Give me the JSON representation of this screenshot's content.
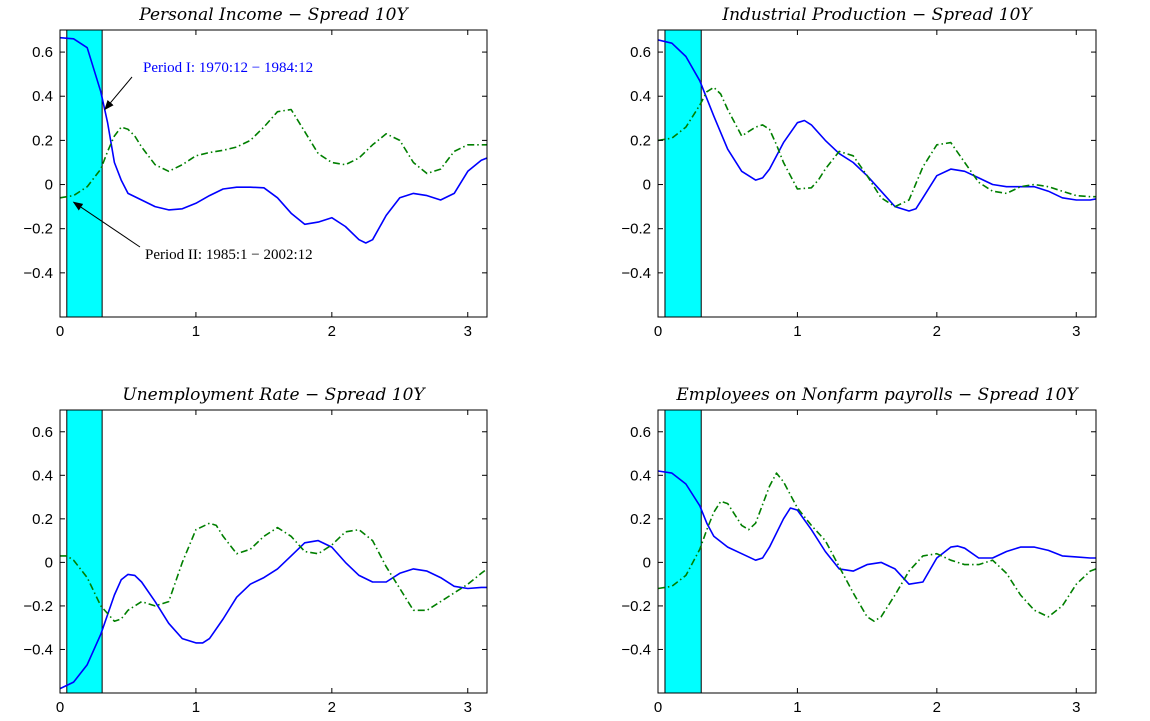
{
  "colors": {
    "period_i": "#0000ff",
    "period_ii": "#007f00",
    "band": "#00ffff",
    "axes": "#000000"
  },
  "chart_data": [
    {
      "type": "line",
      "title": "Personal Income − Spread 10Y",
      "xlim": [
        0,
        3.1416
      ],
      "ylim": [
        -0.6,
        0.7
      ],
      "xticks": [
        0,
        1,
        2,
        3
      ],
      "xtick_labels": [
        "0",
        "1",
        "2",
        "3"
      ],
      "yticks": [
        -0.4,
        -0.2,
        0,
        0.2,
        0.4,
        0.6
      ],
      "ytick_labels": [
        "−0.4",
        "−0.2",
        "0",
        "0.2",
        "0.4",
        "0.6"
      ],
      "band": [
        0.05,
        0.31
      ],
      "annotations": [
        {
          "text": "Period I: 1970:12 − 1984:12",
          "color": "blue",
          "arrow_to": [
            0.33,
            0.34
          ]
        },
        {
          "text": "Period II: 1985:1 − 2002:12",
          "color": "black",
          "arrow_to": [
            0.1,
            -0.08
          ]
        }
      ],
      "series": [
        {
          "style": "solid",
          "color": "blue",
          "x": [
            0,
            0.1,
            0.2,
            0.3,
            0.35,
            0.4,
            0.45,
            0.5,
            0.6,
            0.7,
            0.8,
            0.9,
            1.0,
            1.1,
            1.2,
            1.3,
            1.4,
            1.5,
            1.6,
            1.7,
            1.8,
            1.9,
            2.0,
            2.1,
            2.2,
            2.25,
            2.3,
            2.4,
            2.5,
            2.6,
            2.7,
            2.8,
            2.9,
            3.0,
            3.1,
            3.1416
          ],
          "y": [
            0.665,
            0.66,
            0.62,
            0.42,
            0.28,
            0.1,
            0.02,
            -0.04,
            -0.07,
            -0.1,
            -0.115,
            -0.11,
            -0.085,
            -0.05,
            -0.02,
            -0.012,
            -0.012,
            -0.015,
            -0.06,
            -0.13,
            -0.18,
            -0.17,
            -0.15,
            -0.19,
            -0.25,
            -0.265,
            -0.25,
            -0.14,
            -0.06,
            -0.04,
            -0.05,
            -0.07,
            -0.04,
            0.06,
            0.11,
            0.12
          ]
        },
        {
          "style": "dashdot",
          "color": "green",
          "x": [
            0,
            0.1,
            0.2,
            0.3,
            0.35,
            0.4,
            0.45,
            0.5,
            0.55,
            0.6,
            0.7,
            0.8,
            0.9,
            1.0,
            1.1,
            1.2,
            1.3,
            1.4,
            1.5,
            1.6,
            1.7,
            1.8,
            1.9,
            2.0,
            2.1,
            2.2,
            2.3,
            2.4,
            2.5,
            2.6,
            2.7,
            2.8,
            2.9,
            3.0,
            3.1,
            3.1416
          ],
          "y": [
            -0.06,
            -0.05,
            -0.01,
            0.07,
            0.15,
            0.22,
            0.26,
            0.25,
            0.22,
            0.17,
            0.09,
            0.06,
            0.09,
            0.13,
            0.145,
            0.155,
            0.17,
            0.2,
            0.26,
            0.33,
            0.34,
            0.24,
            0.14,
            0.1,
            0.09,
            0.12,
            0.18,
            0.23,
            0.2,
            0.1,
            0.05,
            0.07,
            0.15,
            0.18,
            0.18,
            0.18
          ]
        }
      ]
    },
    {
      "type": "line",
      "title": "Industrial Production − Spread 10Y",
      "xlim": [
        0,
        3.1416
      ],
      "ylim": [
        -0.6,
        0.7
      ],
      "xticks": [
        0,
        1,
        2,
        3
      ],
      "xtick_labels": [
        "0",
        "1",
        "2",
        "3"
      ],
      "yticks": [
        -0.4,
        -0.2,
        0,
        0.2,
        0.4,
        0.6
      ],
      "ytick_labels": [
        "−0.4",
        "−0.2",
        "0",
        "0.2",
        "0.4",
        "0.6"
      ],
      "band": [
        0.05,
        0.31
      ],
      "annotations": [],
      "series": [
        {
          "style": "solid",
          "color": "blue",
          "x": [
            0,
            0.1,
            0.2,
            0.3,
            0.4,
            0.5,
            0.6,
            0.7,
            0.75,
            0.8,
            0.9,
            1.0,
            1.05,
            1.1,
            1.2,
            1.3,
            1.4,
            1.5,
            1.6,
            1.7,
            1.8,
            1.85,
            1.9,
            2.0,
            2.1,
            2.2,
            2.3,
            2.4,
            2.5,
            2.6,
            2.7,
            2.8,
            2.9,
            3.0,
            3.1,
            3.1416
          ],
          "y": [
            0.655,
            0.64,
            0.58,
            0.47,
            0.31,
            0.16,
            0.06,
            0.02,
            0.03,
            0.07,
            0.19,
            0.28,
            0.29,
            0.27,
            0.2,
            0.14,
            0.1,
            0.04,
            -0.03,
            -0.1,
            -0.12,
            -0.11,
            -0.06,
            0.04,
            0.07,
            0.06,
            0.03,
            0.0,
            -0.01,
            -0.01,
            -0.01,
            -0.03,
            -0.06,
            -0.07,
            -0.07,
            -0.065
          ]
        },
        {
          "style": "dashdot",
          "color": "green",
          "x": [
            0,
            0.1,
            0.2,
            0.3,
            0.35,
            0.4,
            0.45,
            0.5,
            0.6,
            0.7,
            0.75,
            0.8,
            0.85,
            0.9,
            1.0,
            1.1,
            1.15,
            1.2,
            1.3,
            1.4,
            1.5,
            1.6,
            1.7,
            1.8,
            1.9,
            2.0,
            2.1,
            2.2,
            2.3,
            2.4,
            2.5,
            2.6,
            2.7,
            2.8,
            2.9,
            3.0,
            3.1,
            3.1416
          ],
          "y": [
            0.2,
            0.21,
            0.26,
            0.36,
            0.42,
            0.44,
            0.41,
            0.34,
            0.22,
            0.26,
            0.27,
            0.25,
            0.18,
            0.1,
            -0.02,
            -0.015,
            0.02,
            0.07,
            0.15,
            0.13,
            0.04,
            -0.06,
            -0.1,
            -0.07,
            0.08,
            0.18,
            0.19,
            0.1,
            0.01,
            -0.03,
            -0.04,
            -0.01,
            0.0,
            -0.01,
            -0.03,
            -0.05,
            -0.055,
            -0.055
          ]
        }
      ]
    },
    {
      "type": "line",
      "title": "Unemployment Rate − Spread 10Y",
      "xlim": [
        0,
        3.1416
      ],
      "ylim": [
        -0.6,
        0.7
      ],
      "xticks": [
        0,
        1,
        2,
        3
      ],
      "xtick_labels": [
        "0",
        "1",
        "2",
        "3"
      ],
      "yticks": [
        -0.4,
        -0.2,
        0,
        0.2,
        0.4,
        0.6
      ],
      "ytick_labels": [
        "−0.4",
        "−0.2",
        "0",
        "0.2",
        "0.4",
        "0.6"
      ],
      "band": [
        0.05,
        0.31
      ],
      "annotations": [],
      "series": [
        {
          "style": "solid",
          "color": "blue",
          "x": [
            0,
            0.1,
            0.2,
            0.3,
            0.35,
            0.4,
            0.45,
            0.5,
            0.55,
            0.6,
            0.7,
            0.8,
            0.9,
            1.0,
            1.05,
            1.1,
            1.2,
            1.3,
            1.4,
            1.5,
            1.6,
            1.7,
            1.8,
            1.9,
            2.0,
            2.1,
            2.2,
            2.3,
            2.4,
            2.5,
            2.6,
            2.7,
            2.8,
            2.9,
            3.0,
            3.1,
            3.1416
          ],
          "y": [
            -0.58,
            -0.55,
            -0.47,
            -0.33,
            -0.24,
            -0.15,
            -0.08,
            -0.055,
            -0.06,
            -0.09,
            -0.18,
            -0.28,
            -0.35,
            -0.37,
            -0.37,
            -0.35,
            -0.26,
            -0.16,
            -0.1,
            -0.07,
            -0.03,
            0.03,
            0.09,
            0.1,
            0.07,
            0.0,
            -0.06,
            -0.09,
            -0.09,
            -0.05,
            -0.03,
            -0.04,
            -0.07,
            -0.11,
            -0.12,
            -0.115,
            -0.115
          ]
        },
        {
          "style": "dashdot",
          "color": "green",
          "x": [
            0,
            0.05,
            0.1,
            0.2,
            0.3,
            0.4,
            0.45,
            0.5,
            0.6,
            0.7,
            0.8,
            0.9,
            1.0,
            1.1,
            1.15,
            1.2,
            1.3,
            1.4,
            1.5,
            1.6,
            1.7,
            1.8,
            1.9,
            2.0,
            2.1,
            2.2,
            2.3,
            2.4,
            2.5,
            2.6,
            2.7,
            2.8,
            2.9,
            3.0,
            3.1,
            3.1416
          ],
          "y": [
            0.03,
            0.03,
            0.01,
            -0.07,
            -0.2,
            -0.27,
            -0.26,
            -0.22,
            -0.18,
            -0.2,
            -0.18,
            0.0,
            0.15,
            0.18,
            0.17,
            0.12,
            0.04,
            0.06,
            0.12,
            0.16,
            0.12,
            0.05,
            0.04,
            0.08,
            0.14,
            0.15,
            0.1,
            -0.02,
            -0.12,
            -0.22,
            -0.22,
            -0.18,
            -0.14,
            -0.1,
            -0.05,
            -0.03
          ]
        }
      ]
    },
    {
      "type": "line",
      "title": "Employees on Nonfarm payrolls − Spread 10Y",
      "xlim": [
        0,
        3.1416
      ],
      "ylim": [
        -0.6,
        0.7
      ],
      "xticks": [
        0,
        1,
        2,
        3
      ],
      "xtick_labels": [
        "0",
        "1",
        "2",
        "3"
      ],
      "yticks": [
        -0.4,
        -0.2,
        0,
        0.2,
        0.4,
        0.6
      ],
      "ytick_labels": [
        "−0.4",
        "−0.2",
        "0",
        "0.2",
        "0.4",
        "0.6"
      ],
      "band": [
        0.05,
        0.31
      ],
      "annotations": [],
      "series": [
        {
          "style": "solid",
          "color": "blue",
          "x": [
            0,
            0.1,
            0.2,
            0.3,
            0.35,
            0.4,
            0.5,
            0.6,
            0.7,
            0.75,
            0.8,
            0.9,
            0.95,
            1.0,
            1.1,
            1.2,
            1.3,
            1.4,
            1.5,
            1.6,
            1.7,
            1.8,
            1.9,
            2.0,
            2.1,
            2.15,
            2.2,
            2.3,
            2.4,
            2.5,
            2.6,
            2.7,
            2.8,
            2.9,
            3.0,
            3.1,
            3.1416
          ],
          "y": [
            0.42,
            0.41,
            0.36,
            0.26,
            0.18,
            0.12,
            0.07,
            0.04,
            0.01,
            0.02,
            0.07,
            0.2,
            0.25,
            0.24,
            0.15,
            0.05,
            -0.03,
            -0.04,
            -0.01,
            0.0,
            -0.03,
            -0.1,
            -0.09,
            0.02,
            0.07,
            0.075,
            0.065,
            0.02,
            0.02,
            0.05,
            0.07,
            0.07,
            0.055,
            0.03,
            0.025,
            0.02,
            0.02
          ]
        },
        {
          "style": "dashdot",
          "color": "green",
          "x": [
            0,
            0.1,
            0.2,
            0.3,
            0.35,
            0.4,
            0.45,
            0.5,
            0.6,
            0.65,
            0.7,
            0.8,
            0.85,
            0.9,
            1.0,
            1.1,
            1.2,
            1.3,
            1.4,
            1.5,
            1.55,
            1.6,
            1.7,
            1.8,
            1.9,
            2.0,
            2.1,
            2.2,
            2.3,
            2.4,
            2.5,
            2.6,
            2.7,
            2.8,
            2.9,
            3.0,
            3.1,
            3.1416
          ],
          "y": [
            -0.12,
            -0.11,
            -0.06,
            0.06,
            0.15,
            0.23,
            0.28,
            0.27,
            0.17,
            0.15,
            0.18,
            0.35,
            0.41,
            0.37,
            0.25,
            0.17,
            0.1,
            -0.02,
            -0.14,
            -0.25,
            -0.27,
            -0.25,
            -0.15,
            -0.04,
            0.03,
            0.04,
            0.01,
            -0.01,
            -0.01,
            0.01,
            -0.05,
            -0.15,
            -0.22,
            -0.25,
            -0.2,
            -0.1,
            -0.04,
            -0.03
          ]
        }
      ]
    }
  ]
}
